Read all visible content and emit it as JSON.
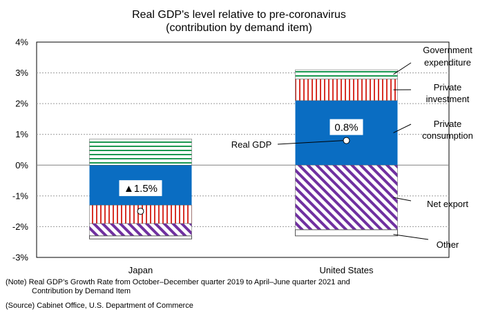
{
  "chart_data": {
    "type": "bar",
    "stacked": true,
    "title": "Real GDP's level relative to pre-coronavirus",
    "subtitle": "(contribution by demand item)",
    "categories": [
      "Japan",
      "United States"
    ],
    "ylim": [
      -3,
      4
    ],
    "yticks": [
      "-3%",
      "-2%",
      "-1%",
      "0%",
      "1%",
      "2%",
      "3%",
      "4%"
    ],
    "series": [
      {
        "name": "Government expenditure",
        "label": "Government\nexpenditure",
        "values": [
          0.85,
          0.3
        ],
        "color": "#1a9850",
        "pattern": "horizontal-lines"
      },
      {
        "name": "Private investment",
        "label": "Private\ninvestment",
        "values": [
          -0.6,
          0.7
        ],
        "color": "#d73027",
        "pattern": "vertical-lines"
      },
      {
        "name": "Private consumption",
        "label": "Private\nconsumption",
        "values": [
          -1.3,
          2.1
        ],
        "color": "#0a6dc2",
        "pattern": "solid"
      },
      {
        "name": "Net export",
        "label": "Net export",
        "values": [
          -0.4,
          -2.1
        ],
        "color": "#7030a0",
        "pattern": "diagonal-lines"
      },
      {
        "name": "Other",
        "label": "Other",
        "values": [
          -0.1,
          -0.2
        ],
        "color": "#ffffff",
        "pattern": "solid"
      }
    ],
    "real_gdp": {
      "name": "Real GDP",
      "values": [
        -1.5,
        0.8
      ],
      "data_labels": [
        "▲1.5%",
        "0.8%"
      ]
    },
    "grid": "dotted-horizontal"
  },
  "notes": {
    "note_line1": "(Note) Real GDP’s Growth Rate from October–December quarter 2019 to April–June quarter 2021 and",
    "note_line2": "Contribution by Demand Item",
    "source": "(Source) Cabinet Office, U.S. Department of Commerce"
  }
}
